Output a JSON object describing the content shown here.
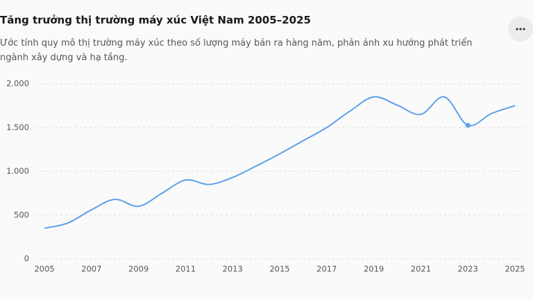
{
  "chart_data": {
    "type": "line",
    "title": "Tăng trưởng thị trường máy xúc Việt Nam 2005–2025",
    "subtitle": "Ước tính quy mô thị trường máy xúc theo số lượng máy bán ra hàng năm, phản ánh xu hướng phát triển ngành xây dựng và hạ tầng.",
    "x": [
      2005,
      2006,
      2007,
      2008,
      2009,
      2010,
      2011,
      2012,
      2013,
      2014,
      2015,
      2016,
      2017,
      2018,
      2019,
      2020,
      2021,
      2022,
      2023,
      2024,
      2025
    ],
    "series": [
      {
        "color": "#5ba0e8",
        "values": [
          350,
          410,
          560,
          680,
          600,
          750,
          900,
          850,
          930,
          1060,
          1200,
          1350,
          1500,
          1690,
          1850,
          1755,
          1650,
          1850,
          1525,
          1660,
          1750
        ]
      }
    ],
    "highlight_x": 2023,
    "xlim": [
      2005,
      2025
    ],
    "xticks": [
      2005,
      2007,
      2009,
      2011,
      2013,
      2015,
      2017,
      2019,
      2021,
      2023,
      2025
    ],
    "ylim": [
      0,
      2000
    ],
    "yticks": [
      0,
      500,
      {
        "value": 1000,
        "label": "1.000"
      },
      {
        "value": 1500,
        "label": "1.500"
      },
      {
        "value": 2000,
        "label": "2.000"
      }
    ],
    "grid": true
  }
}
